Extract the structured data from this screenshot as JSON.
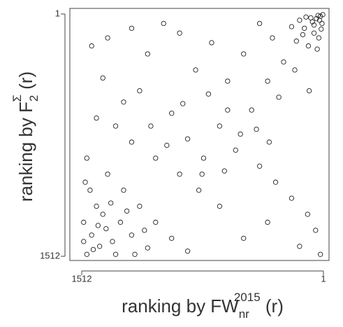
{
  "chart_data": {
    "type": "scatter",
    "x_label": {
      "text": "ranking by FW",
      "sub": "nr",
      "sup": "2015",
      "suffix": " (r)"
    },
    "y_label": {
      "text": "ranking by F",
      "sub": "2",
      "sup": "Σ",
      "suffix": " (r)"
    },
    "xlim": [
      1512,
      1
    ],
    "ylim": [
      1512,
      1
    ],
    "xticks": [
      1512,
      1
    ],
    "yticks": [
      1,
      1512
    ],
    "color": "#222222",
    "x": [
      20,
      45,
      10,
      80,
      120,
      60,
      150,
      30,
      95,
      200,
      250,
      180,
      320,
      400,
      350,
      90,
      500,
      280,
      450,
      600,
      700,
      650,
      800,
      900,
      1000,
      1100,
      1200,
      1350,
      1450,
      1380,
      1250,
      1150,
      950,
      850,
      750,
      550,
      400,
      300,
      200,
      100,
      50,
      150,
      20,
      350,
      500,
      650,
      780,
      900,
      1050,
      1200,
      1300,
      1420,
      1480,
      1350,
      1250,
      1150,
      1050,
      950,
      850,
      1400,
      1480,
      1450,
      1500,
      1380,
      1320,
      1420,
      1300,
      1460,
      1200,
      1100,
      1490,
      1360,
      1440,
      1270,
      1180,
      1500,
      1330,
      1230,
      1410,
      1120,
      5,
      35,
      70,
      15,
      110,
      60,
      25,
      130,
      40,
      170,
      600,
      720,
      520,
      880,
      980,
      760,
      620,
      1080,
      420,
      340
    ],
    "values": [
      15,
      30,
      60,
      25,
      90,
      120,
      40,
      150,
      200,
      80,
      300,
      350,
      150,
      60,
      420,
      480,
      250,
      520,
      600,
      420,
      180,
      700,
      350,
      120,
      60,
      250,
      90,
      150,
      200,
      400,
      550,
      480,
      620,
      780,
      900,
      850,
      950,
      1050,
      1150,
      1250,
      1350,
      1450,
      1500,
      1300,
      1400,
      1200,
      1100,
      1000,
      900,
      800,
      700,
      650,
      900,
      1000,
      1100,
      1200,
      1300,
      1400,
      1480,
      1450,
      1500,
      1380,
      1300,
      1250,
      1420,
      1200,
      1500,
      1100,
      1380,
      1460,
      1050,
      1340,
      1470,
      1300,
      1500,
      1420,
      1180,
      1230,
      1320,
      1350,
      5,
      10,
      50,
      95,
      20,
      70,
      40,
      130,
      220,
      170,
      600,
      500,
      750,
      560,
      820,
      1000,
      980,
      700,
      720,
      800
    ]
  }
}
